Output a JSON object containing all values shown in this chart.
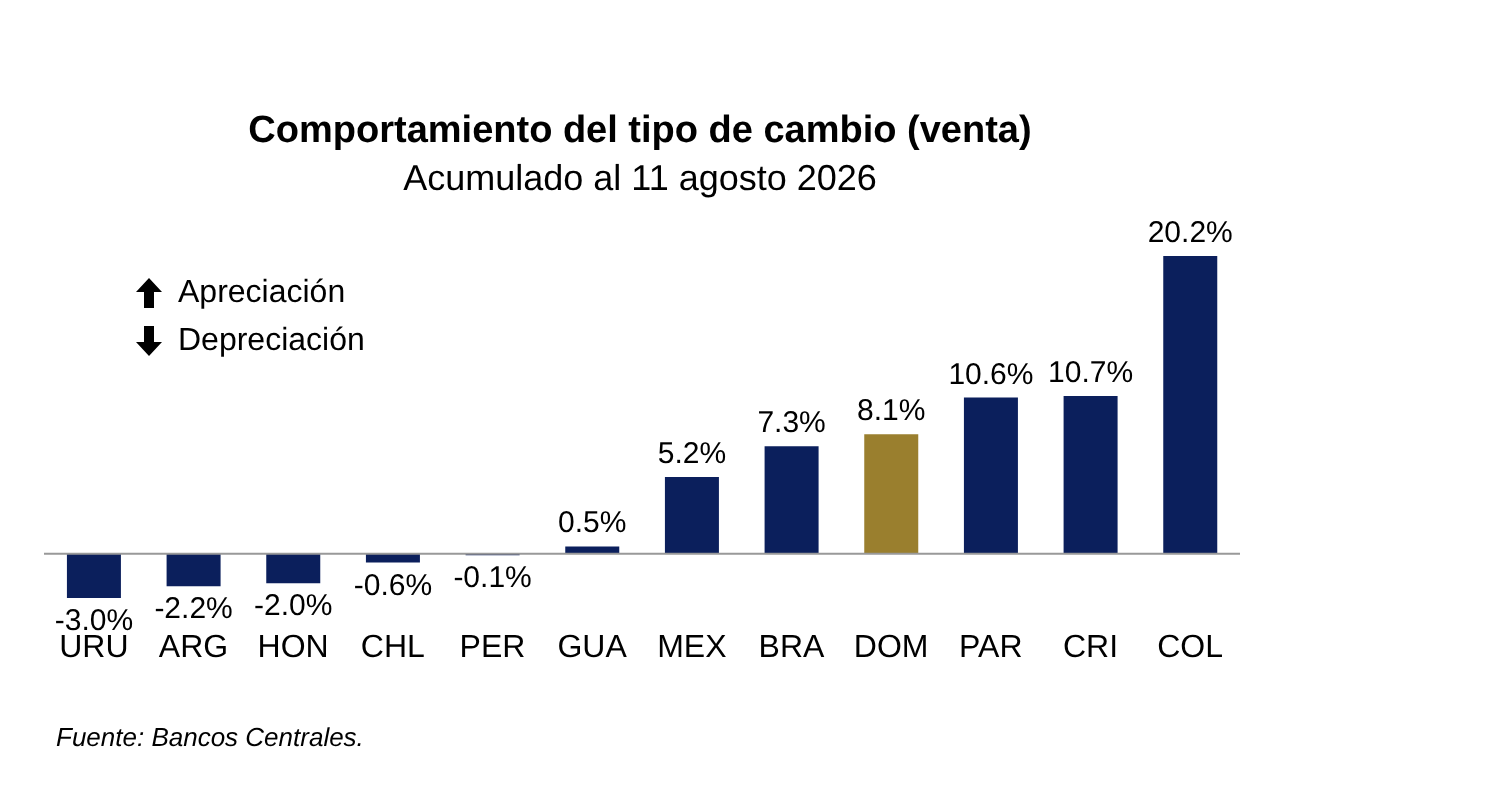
{
  "chart_data": {
    "type": "bar",
    "title": "Comportamiento del tipo de cambio (venta)",
    "subtitle": "Acumulado al 11 agosto 2026",
    "categories": [
      "URU",
      "ARG",
      "HON",
      "CHL",
      "PER",
      "GUA",
      "MEX",
      "BRA",
      "DOM",
      "PAR",
      "CRI",
      "COL"
    ],
    "values": [
      -3.0,
      -2.2,
      -2.0,
      -0.6,
      -0.1,
      0.5,
      5.2,
      7.3,
      8.1,
      10.6,
      10.7,
      20.2
    ],
    "colors": [
      "#0b1f5c",
      "#0b1f5c",
      "#0b1f5c",
      "#0b1f5c",
      "#0b1f5c",
      "#0b1f5c",
      "#0b1f5c",
      "#0b1f5c",
      "#9a7f2e",
      "#0b1f5c",
      "#0b1f5c",
      "#0b1f5c"
    ],
    "value_labels": [
      "-3.0%",
      "-2.2%",
      "-2.0%",
      "-0.6%",
      "-0.1%",
      "0.5%",
      "5.2%",
      "7.3%",
      "8.1%",
      "10.6%",
      "10.7%",
      "20.2%"
    ],
    "annotations": [
      "Apreciación",
      "Depreciación",
      "Fuente: Bancos Centrales."
    ],
    "grid": false,
    "legend": false
  }
}
